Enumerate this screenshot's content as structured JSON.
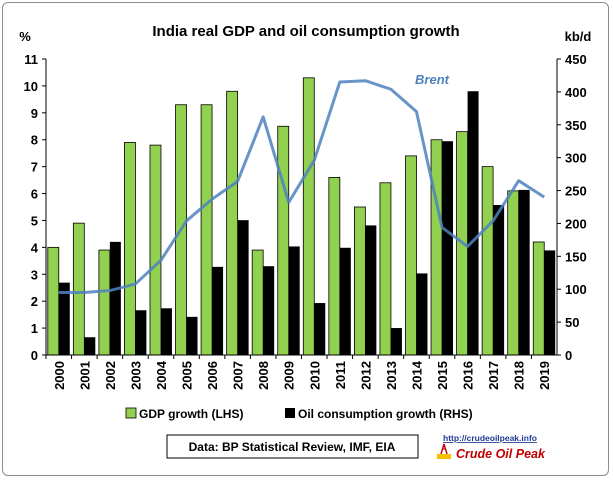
{
  "chart_data": {
    "type": "bar",
    "title": "India real GDP and oil consumption growth",
    "ylabel_left": "%",
    "ylabel_right": "kb/d",
    "categories": [
      "2000",
      "2001",
      "2002",
      "2003",
      "2004",
      "2005",
      "2006",
      "2007",
      "2008",
      "2009",
      "2010",
      "2011",
      "2012",
      "2013",
      "2014",
      "2015",
      "2016",
      "2017",
      "2018",
      "2019"
    ],
    "ylim_left": [
      0,
      11
    ],
    "ylim_right": [
      0,
      450
    ],
    "left_ticks": [
      0,
      1,
      2,
      3,
      4,
      5,
      6,
      7,
      8,
      9,
      10,
      11
    ],
    "right_ticks": [
      0,
      50,
      100,
      150,
      200,
      250,
      300,
      350,
      400,
      450
    ],
    "series": [
      {
        "name": "GDP growth (LHS)",
        "axis": "left",
        "type": "bar",
        "color": "#92d050",
        "values": [
          4.0,
          4.9,
          3.9,
          7.9,
          7.8,
          9.3,
          9.3,
          9.8,
          3.9,
          8.5,
          10.3,
          6.6,
          5.5,
          6.4,
          7.4,
          8.0,
          8.3,
          7.0,
          6.1,
          4.2
        ]
      },
      {
        "name": "Oil consumption growth (RHS)",
        "axis": "right",
        "type": "bar",
        "color": "#000000",
        "values": [
          110,
          27,
          172,
          68,
          71,
          58,
          134,
          205,
          135,
          165,
          79,
          163,
          197,
          41,
          124,
          325,
          401,
          228,
          251,
          159
        ]
      },
      {
        "name": "Brent",
        "axis": "right",
        "type": "line",
        "color": "#4f81bd",
        "values": [
          95,
          95,
          98,
          108,
          144,
          204,
          237,
          264,
          362,
          232,
          296,
          415,
          417,
          404,
          370,
          194,
          165,
          204,
          265,
          240
        ]
      }
    ],
    "legend_position": "bottom",
    "grid": false
  },
  "annotations": {
    "source": "Data: BP Statistical Review, IMF, EIA",
    "logo_url": "http://crudeoilpeak.info",
    "logo_name": "Crude Oil Peak"
  }
}
